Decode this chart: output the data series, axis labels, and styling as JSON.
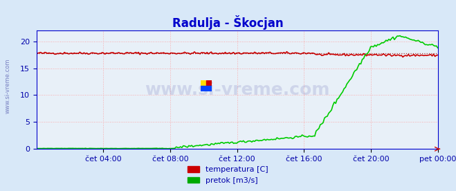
{
  "title": "Radulja - Škocjan",
  "title_color": "#0000cc",
  "title_fontsize": 12,
  "bg_color": "#d8e8f8",
  "plot_bg_color": "#e8f0f8",
  "grid_color": "#ff9999",
  "grid_linestyle": ":",
  "ylim": [
    0,
    22
  ],
  "yticks": [
    0,
    5,
    10,
    15,
    20
  ],
  "xlabel_color": "#0000aa",
  "ylabel_color": "#0000aa",
  "xtick_labels": [
    "čet 04:00",
    "čet 08:00",
    "čet 12:00",
    "čet 16:00",
    "čet 20:00",
    "pet 00:00"
  ],
  "watermark_text": "www.si-vreme.com",
  "watermark_color": "#1a1a8c",
  "watermark_alpha": 0.15,
  "side_text": "www.si-vreme.com",
  "legend_labels": [
    "temperatura [C]",
    "pretok [m3/s]"
  ],
  "legend_colors": [
    "#cc0000",
    "#00aa00"
  ],
  "temp_color": "#cc0000",
  "flow_color": "#00cc00",
  "avg_line_color": "#990000",
  "avg_line_style": ":",
  "avg_value": 17.8,
  "n_points": 288
}
